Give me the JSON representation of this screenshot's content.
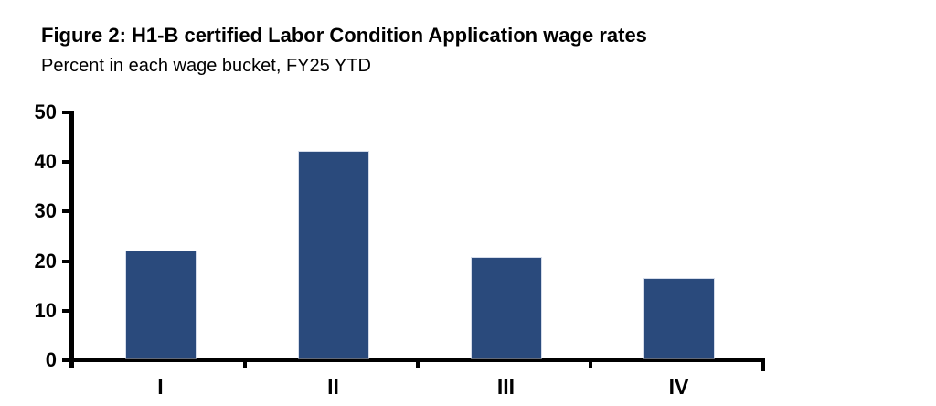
{
  "figure": {
    "title": "Figure 2: H1-B certified Labor Condition Application wage rates",
    "subtitle": "Percent in each wage bucket, FY25 YTD"
  },
  "chart_data": {
    "type": "bar",
    "title": "Figure 2: H1-B certified Labor Condition Application wage rates",
    "subtitle": "Percent in each wage bucket, FY25 YTD",
    "categories": [
      "I",
      "II",
      "III",
      "IV"
    ],
    "values": [
      21.5,
      41.7,
      20.3,
      16.0
    ],
    "xlabel": "",
    "ylabel": "",
    "ylim": [
      0,
      50
    ],
    "yticks": [
      0,
      10,
      20,
      30,
      40,
      50
    ],
    "grid": false,
    "legend": false,
    "bar_color": "#2A4A7C",
    "axis_color": "#000000",
    "text_color": "#000000"
  }
}
